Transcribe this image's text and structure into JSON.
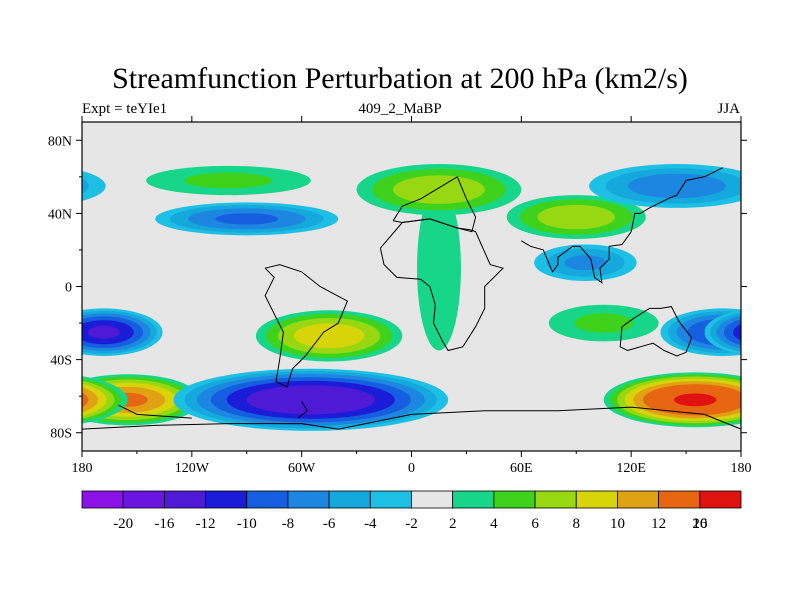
{
  "chart_data": {
    "type": "heatmap",
    "title": "Streamfunction Perturbation at 200 hPa (km2/s)",
    "left_string": "Expt = teYIe1",
    "center_string": "409_2_MaBP",
    "right_string": "JJA",
    "x_ticks": [
      "180",
      "120W",
      "60W",
      "0",
      "60E",
      "120E",
      "180"
    ],
    "x_tick_values": [
      -180,
      -120,
      -60,
      0,
      60,
      120,
      180
    ],
    "y_ticks": [
      "80N",
      "40N",
      "0",
      "40S",
      "80S"
    ],
    "y_tick_values": [
      80,
      40,
      0,
      -40,
      -80
    ],
    "xlim": [
      -180,
      180
    ],
    "ylim": [
      -90,
      90
    ],
    "contour_levels": [
      -20,
      -16,
      -12,
      -10,
      -8,
      -6,
      -4,
      -2,
      2,
      4,
      6,
      8,
      10,
      12,
      16,
      20
    ],
    "colorbar_labels": [
      "-20",
      "-16",
      "-12",
      "-10",
      "-8",
      "-6",
      "-4",
      "-2",
      "2",
      "4",
      "6",
      "8",
      "10",
      "12",
      "16",
      "20"
    ],
    "colors": [
      "#8c12e8",
      "#6a16e0",
      "#4f1ad6",
      "#1b1cd8",
      "#165ee0",
      "#1c86e0",
      "#15a8dc",
      "#1dc0e4",
      "#e6e6e6",
      "#17d68a",
      "#3ed21c",
      "#98d812",
      "#d8d40a",
      "#e0a214",
      "#e66612",
      "#e01212"
    ],
    "features": [
      {
        "lon": -168,
        "lat": -25,
        "value": -12,
        "rx": 32,
        "ry": 13
      },
      {
        "lon": -155,
        "lat": -62,
        "value": 12,
        "rx": 40,
        "ry": 14
      },
      {
        "lon": -55,
        "lat": -62,
        "value": -14,
        "rx": 75,
        "ry": 17
      },
      {
        "lon": -45,
        "lat": -27,
        "value": 9,
        "rx": 40,
        "ry": 14
      },
      {
        "lon": 155,
        "lat": -62,
        "value": 16,
        "rx": 50,
        "ry": 15
      },
      {
        "lon": 170,
        "lat": -25,
        "value": -10,
        "rx": 34,
        "ry": 13
      },
      {
        "lon": -90,
        "lat": 37,
        "value": -8,
        "rx": 50,
        "ry": 9
      },
      {
        "lon": 15,
        "lat": 53,
        "value": 7,
        "rx": 45,
        "ry": 14
      },
      {
        "lon": 90,
        "lat": 38,
        "value": 7,
        "rx": 38,
        "ry": 12
      },
      {
        "lon": 145,
        "lat": 55,
        "value": -7,
        "rx": 48,
        "ry": 12
      },
      {
        "lon": 95,
        "lat": 13,
        "value": -6,
        "rx": 28,
        "ry": 10
      },
      {
        "lon": -100,
        "lat": 58,
        "value": 4,
        "rx": 45,
        "ry": 8
      },
      {
        "lon": 105,
        "lat": -20,
        "value": 4,
        "rx": 30,
        "ry": 10
      },
      {
        "lon": 15,
        "lat": 10,
        "value": 3,
        "rx": 12,
        "ry": 45
      }
    ]
  }
}
